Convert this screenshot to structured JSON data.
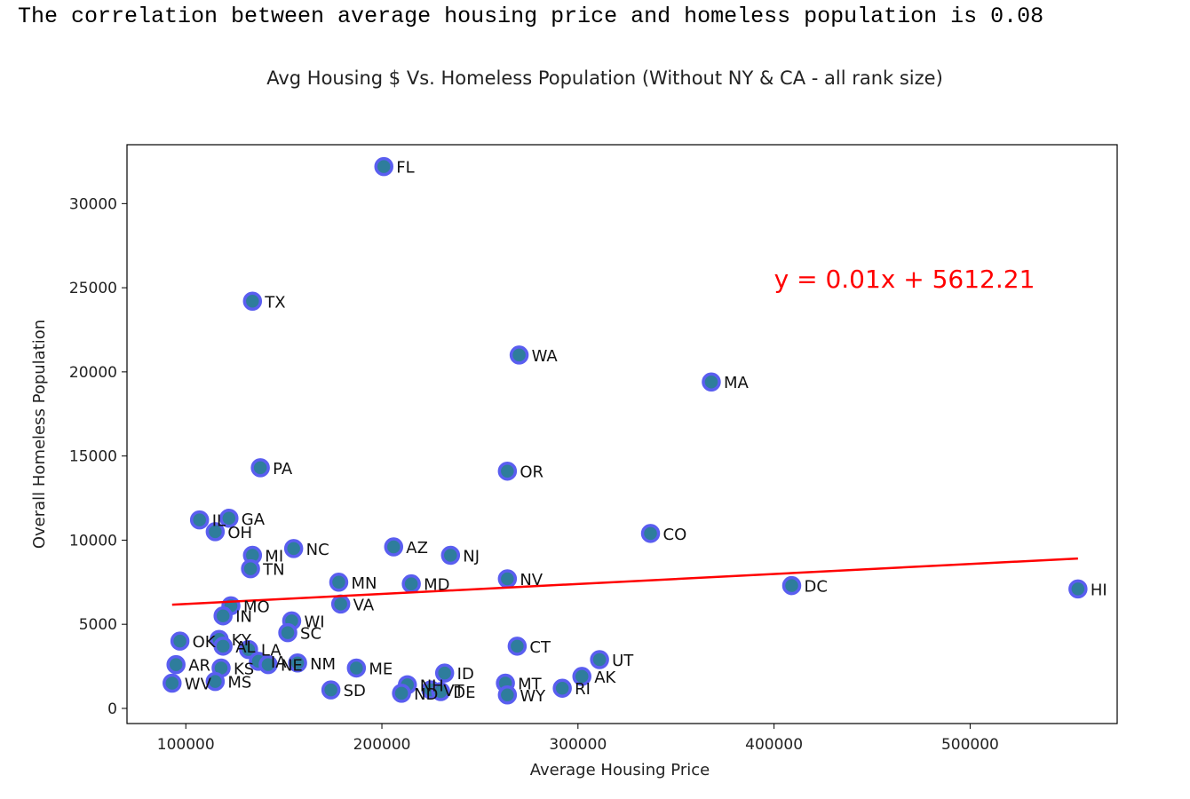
{
  "header_text": "The correlation between average housing price and homeless population is 0.08",
  "chart_data": {
    "type": "scatter",
    "title": "Avg Housing $ Vs. Homeless Population (Without NY & CA - all rank size)",
    "xlabel": "Average Housing Price",
    "ylabel": "Overall Homeless Population",
    "xlim": [
      70000,
      575000
    ],
    "ylim": [
      -900,
      33500
    ],
    "xticks": [
      100000,
      200000,
      300000,
      400000,
      500000
    ],
    "yticks": [
      0,
      5000,
      10000,
      15000,
      20000,
      25000,
      30000
    ],
    "grid": false,
    "marker_fill": "#2e7d9c",
    "marker_edge": "#5a5ef0",
    "regression": {
      "slope": 0.00594,
      "intercept": 5612.21,
      "x_range": [
        93000,
        555000
      ],
      "equation_label": "y = 0.01x + 5612.21",
      "label_anchor": [
        400000,
        25000
      ],
      "color": "#ff0000"
    },
    "points": [
      {
        "label": "FL",
        "x": 201000,
        "y": 32200
      },
      {
        "label": "TX",
        "x": 134000,
        "y": 24200
      },
      {
        "label": "WA",
        "x": 270000,
        "y": 21000
      },
      {
        "label": "MA",
        "x": 368000,
        "y": 19400
      },
      {
        "label": "PA",
        "x": 138000,
        "y": 14300
      },
      {
        "label": "OR",
        "x": 264000,
        "y": 14100
      },
      {
        "label": "IL",
        "x": 107000,
        "y": 11200
      },
      {
        "label": "GA",
        "x": 122000,
        "y": 11300
      },
      {
        "label": "OH",
        "x": 115000,
        "y": 10500
      },
      {
        "label": "CO",
        "x": 337000,
        "y": 10400
      },
      {
        "label": "AZ",
        "x": 206000,
        "y": 9600
      },
      {
        "label": "NC",
        "x": 155000,
        "y": 9500
      },
      {
        "label": "NJ",
        "x": 235000,
        "y": 9100
      },
      {
        "label": "MI",
        "x": 134000,
        "y": 9100
      },
      {
        "label": "TN",
        "x": 133000,
        "y": 8300
      },
      {
        "label": "NV",
        "x": 264000,
        "y": 7700
      },
      {
        "label": "MN",
        "x": 178000,
        "y": 7500
      },
      {
        "label": "MD",
        "x": 215000,
        "y": 7400
      },
      {
        "label": "DC",
        "x": 409000,
        "y": 7300
      },
      {
        "label": "HI",
        "x": 555000,
        "y": 7100
      },
      {
        "label": "MO",
        "x": 123000,
        "y": 6100
      },
      {
        "label": "VA",
        "x": 179000,
        "y": 6200
      },
      {
        "label": "IN",
        "x": 119000,
        "y": 5500
      },
      {
        "label": "WI",
        "x": 154000,
        "y": 5200
      },
      {
        "label": "SC",
        "x": 152000,
        "y": 4500
      },
      {
        "label": "OK",
        "x": 97000,
        "y": 4000
      },
      {
        "label": "KY",
        "x": 117000,
        "y": 4100
      },
      {
        "label": "AL",
        "x": 119000,
        "y": 3700
      },
      {
        "label": "CT",
        "x": 269000,
        "y": 3700
      },
      {
        "label": "LA",
        "x": 132000,
        "y": 3500
      },
      {
        "label": "IA",
        "x": 137000,
        "y": 2800
      },
      {
        "label": "NE",
        "x": 142000,
        "y": 2600
      },
      {
        "label": "NM",
        "x": 157000,
        "y": 2700
      },
      {
        "label": "UT",
        "x": 311000,
        "y": 2900
      },
      {
        "label": "AR",
        "x": 95000,
        "y": 2600
      },
      {
        "label": "ME",
        "x": 187000,
        "y": 2400
      },
      {
        "label": "KS",
        "x": 118000,
        "y": 2400
      },
      {
        "label": "ID",
        "x": 232000,
        "y": 2100
      },
      {
        "label": "AK",
        "x": 302000,
        "y": 1900
      },
      {
        "label": "MS",
        "x": 115000,
        "y": 1600
      },
      {
        "label": "WV",
        "x": 93000,
        "y": 1500
      },
      {
        "label": "MT",
        "x": 263000,
        "y": 1500
      },
      {
        "label": "NH",
        "x": 213000,
        "y": 1400
      },
      {
        "label": "RI",
        "x": 292000,
        "y": 1200
      },
      {
        "label": "SD",
        "x": 174000,
        "y": 1100
      },
      {
        "label": "VT",
        "x": 225000,
        "y": 1100
      },
      {
        "label": "DE",
        "x": 230000,
        "y": 1000
      },
      {
        "label": "ND",
        "x": 210000,
        "y": 900
      },
      {
        "label": "WY",
        "x": 264000,
        "y": 800
      }
    ]
  }
}
